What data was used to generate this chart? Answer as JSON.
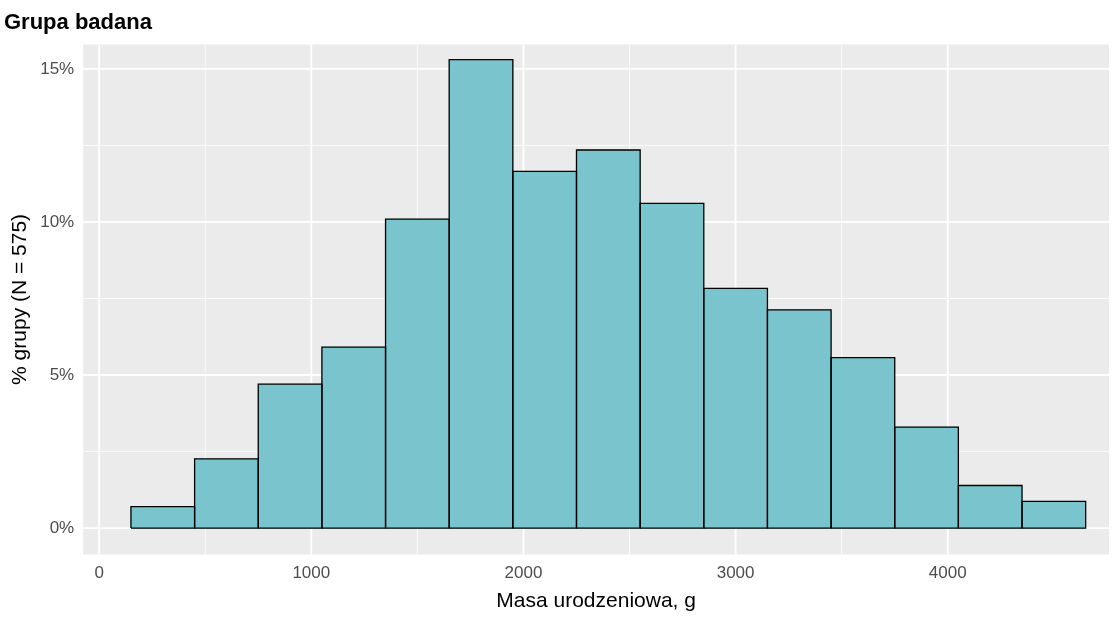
{
  "chart_data": {
    "type": "histogram",
    "title": "Grupa badana",
    "xlabel": "Masa urodzeniowa, g",
    "ylabel": "% grupy (N = 575)",
    "bins": [
      150,
      450,
      750,
      1050,
      1350,
      1650,
      1950,
      2250,
      2550,
      2850,
      3150,
      3450,
      3750,
      4050,
      4350,
      4650
    ],
    "values": [
      0.7,
      2.26,
      4.7,
      5.91,
      10.09,
      15.3,
      11.65,
      12.35,
      10.61,
      7.83,
      7.13,
      5.57,
      3.3,
      1.39,
      0.87
    ],
    "color": "#7ac5cd",
    "xlim": [
      -75,
      4760
    ],
    "xticks": [
      0,
      1000,
      2000,
      3000,
      4000
    ],
    "ylim": [
      -0.86,
      15.8
    ],
    "yticks": [
      {
        "value": 0,
        "label": "0%"
      },
      {
        "value": 5,
        "label": "5%"
      },
      {
        "value": 10,
        "label": "10%"
      },
      {
        "value": 15,
        "label": "15%"
      }
    ],
    "grid": true,
    "legend": false
  }
}
